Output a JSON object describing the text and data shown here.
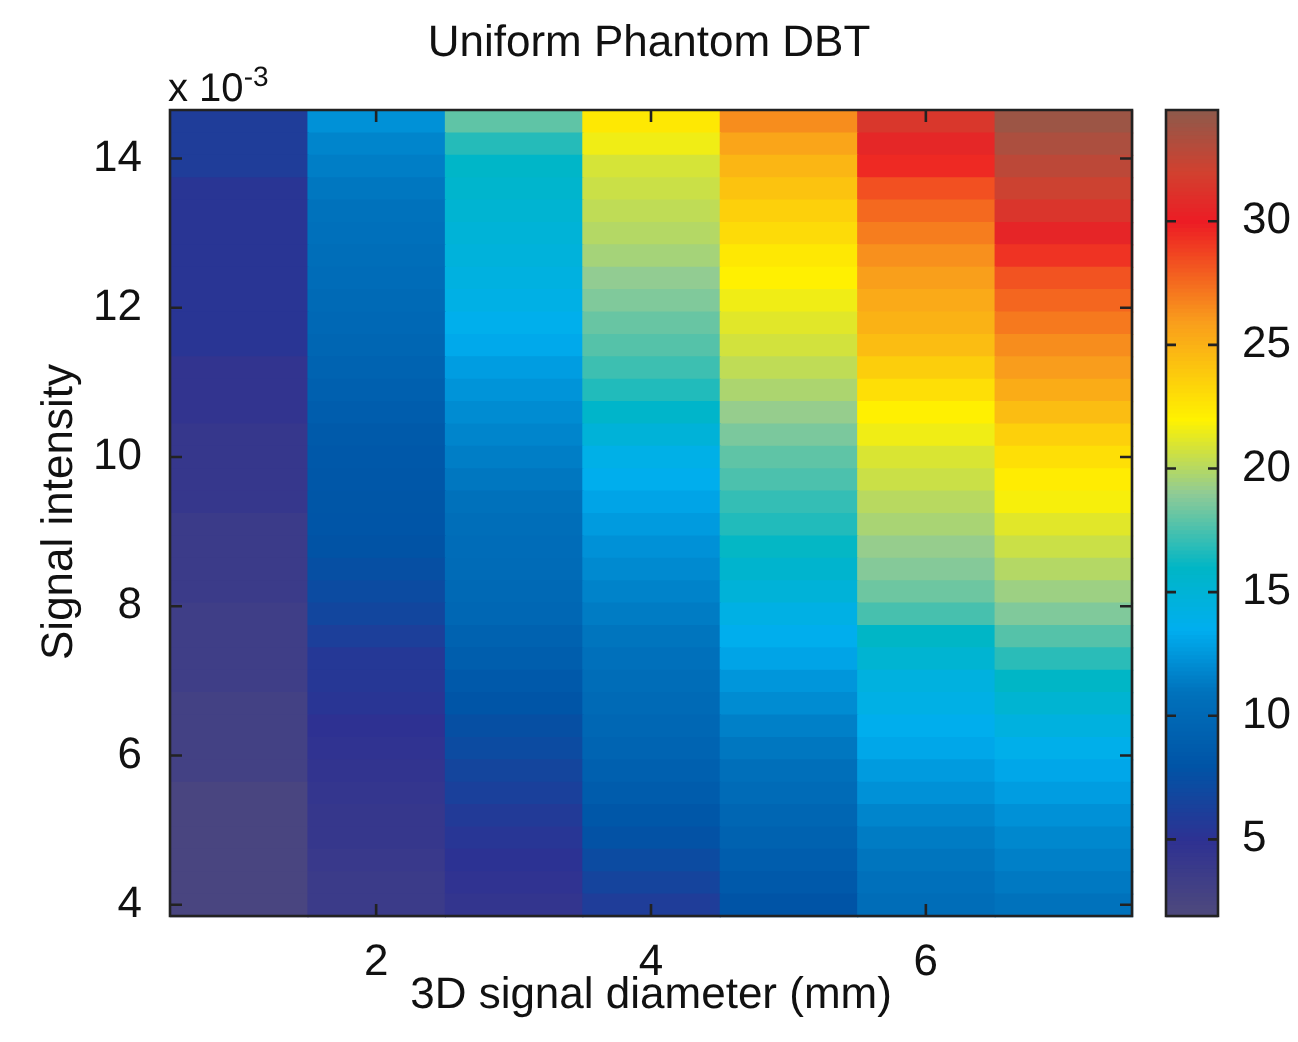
{
  "chart_data": {
    "type": "heatmap",
    "title": "Uniform Phantom DBT",
    "xlabel": "3D signal diameter (mm)",
    "ylabel": "Signal intensity",
    "annotations": [
      "x 10$^{-3}$"
    ],
    "x": [
      1,
      2,
      3,
      4,
      5,
      6,
      7
    ],
    "y": [
      14.5,
      14.2,
      13.9,
      13.6,
      13.3,
      13.0,
      12.7,
      12.4,
      12.1,
      11.8,
      11.5,
      11.2,
      10.9,
      10.6,
      10.3,
      10.0,
      9.7,
      9.4,
      9.1,
      8.8,
      8.5,
      8.2,
      7.9,
      7.6,
      7.3,
      7.0,
      6.7,
      6.4,
      6.1,
      5.8,
      5.5,
      5.2,
      4.9,
      4.6,
      4.3,
      4.0
    ],
    "xlim": [
      0.5,
      7.5
    ],
    "xticks": [
      2,
      4,
      6
    ],
    "ylim": [
      3.85,
      14.65
    ],
    "yticks": [
      4,
      6,
      8,
      10,
      12,
      14
    ],
    "clim": [
      1.9,
      34.5
    ],
    "cticks": [
      5,
      10,
      15,
      20,
      25,
      30
    ],
    "cells": [
      [
        6.0,
        12.3,
        18.0,
        22.5,
        26.5,
        31.5,
        34.0
      ],
      [
        6.0,
        11.8,
        16.8,
        21.6,
        25.6,
        30.6,
        33.4
      ],
      [
        6.0,
        11.5,
        15.9,
        20.9,
        24.8,
        29.6,
        32.8
      ],
      [
        5.3,
        11.2,
        15.6,
        20.6,
        24.2,
        28.4,
        32.2
      ],
      [
        5.3,
        11.0,
        15.3,
        20.3,
        23.6,
        27.6,
        31.4
      ],
      [
        5.3,
        10.8,
        15.0,
        20.0,
        23.1,
        27.0,
        30.5
      ],
      [
        5.3,
        10.6,
        14.7,
        19.6,
        22.5,
        26.4,
        29.3
      ],
      [
        5.3,
        10.4,
        14.4,
        19.1,
        22.1,
        25.9,
        28.3
      ],
      [
        5.3,
        10.2,
        14.1,
        18.7,
        21.6,
        25.4,
        27.7
      ],
      [
        5.3,
        10.0,
        13.7,
        18.2,
        21.2,
        25.0,
        27.1
      ],
      [
        5.3,
        9.8,
        13.3,
        17.8,
        20.8,
        24.5,
        26.5
      ],
      [
        4.6,
        9.5,
        12.8,
        17.3,
        20.3,
        23.7,
        26.0
      ],
      [
        4.6,
        9.2,
        12.4,
        16.7,
        19.8,
        22.9,
        25.3
      ],
      [
        4.6,
        8.9,
        12.1,
        15.8,
        19.2,
        22.1,
        24.5
      ],
      [
        4.2,
        8.6,
        11.8,
        14.9,
        18.6,
        21.6,
        23.6
      ],
      [
        4.2,
        8.4,
        11.5,
        14.0,
        18.0,
        21.0,
        22.9
      ],
      [
        4.2,
        8.3,
        11.2,
        13.6,
        17.6,
        20.6,
        22.3
      ],
      [
        4.2,
        8.2,
        10.9,
        13.1,
        17.1,
        20.1,
        21.8
      ],
      [
        3.8,
        8.1,
        10.6,
        12.7,
        16.7,
        19.7,
        21.2
      ],
      [
        3.8,
        7.9,
        10.4,
        12.3,
        16.1,
        19.2,
        20.6
      ],
      [
        3.8,
        7.6,
        10.3,
        12.0,
        15.5,
        18.8,
        20.0
      ],
      [
        3.8,
        7.2,
        10.1,
        11.7,
        14.9,
        18.3,
        19.4
      ],
      [
        3.4,
        6.8,
        9.9,
        11.4,
        14.2,
        17.5,
        18.7
      ],
      [
        3.4,
        6.2,
        9.4,
        11.1,
        13.6,
        16.0,
        17.8
      ],
      [
        3.4,
        5.6,
        9.0,
        10.8,
        13.1,
        15.3,
        16.9
      ],
      [
        3.4,
        5.5,
        8.5,
        10.5,
        12.5,
        14.5,
        16.0
      ],
      [
        3.0,
        5.3,
        8.1,
        10.2,
        12.1,
        14.1,
        15.3
      ],
      [
        3.0,
        5.0,
        7.6,
        9.9,
        11.6,
        13.6,
        14.5
      ],
      [
        3.0,
        4.8,
        7.2,
        9.6,
        11.2,
        13.2,
        13.8
      ],
      [
        3.0,
        4.6,
        6.7,
        9.2,
        10.7,
        12.7,
        13.2
      ],
      [
        2.5,
        4.4,
        6.3,
        8.8,
        10.3,
        12.3,
        12.8
      ],
      [
        2.5,
        4.2,
        5.8,
        8.3,
        9.8,
        11.8,
        12.3
      ],
      [
        2.5,
        4.2,
        5.4,
        7.8,
        9.4,
        11.4,
        11.9
      ],
      [
        2.5,
        4.0,
        5.1,
        7.2,
        8.9,
        11.1,
        11.6
      ],
      [
        2.5,
        3.8,
        4.8,
        6.6,
        8.5,
        10.8,
        11.3
      ],
      [
        2.5,
        3.8,
        4.5,
        6.0,
        8.0,
        10.5,
        11.0
      ]
    ]
  }
}
